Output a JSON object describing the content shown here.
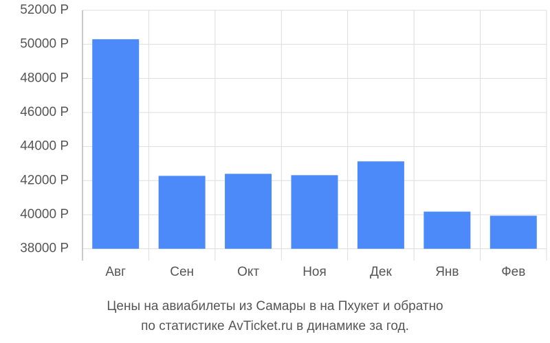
{
  "chart_data": {
    "type": "bar",
    "title": "Цены на авиабилеты из Самары в на Пхукет и обратно",
    "subtitle": "по статистике AvTicket.ru в динамике за год.",
    "categories": [
      "Авг",
      "Сен",
      "Окт",
      "Ноя",
      "Дек",
      "Янв",
      "Фев"
    ],
    "values": [
      50300,
      42280,
      42400,
      42320,
      43130,
      40180,
      39940
    ],
    "color": "#4d8af9",
    "ylim": [
      37300,
      52000
    ],
    "yticks": [
      {
        "value": 38000,
        "label": "38000 Р"
      },
      {
        "value": 40000,
        "label": "40000 Р"
      },
      {
        "value": 42000,
        "label": "42000 Р"
      },
      {
        "value": 44000,
        "label": "44000 Р"
      },
      {
        "value": 46000,
        "label": "46000 Р"
      },
      {
        "value": 48000,
        "label": "48000 Р"
      },
      {
        "value": 50000,
        "label": "50000 Р"
      },
      {
        "value": 52000,
        "label": "52000 Р"
      }
    ],
    "grid": true
  }
}
